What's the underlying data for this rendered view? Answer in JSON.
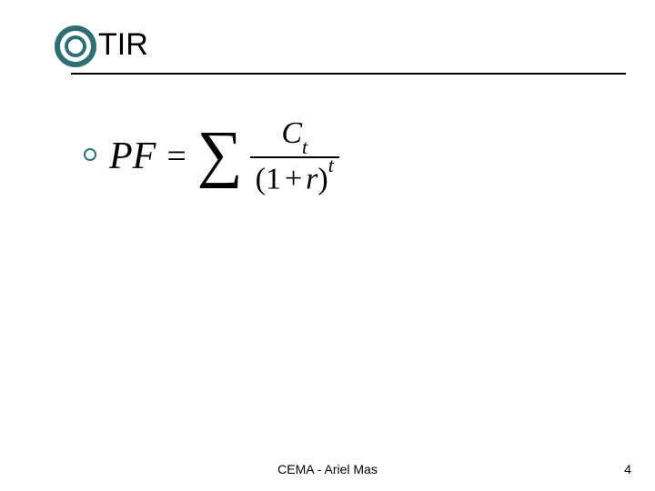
{
  "title": "TIR",
  "accent_color": "#2f6f74",
  "underline_color": "#000000",
  "bullet_border_color": "#2f6f74",
  "ring_inner_bg": "#ffffff",
  "formula": {
    "lhs": "PF",
    "eq": "=",
    "sigma": "∑",
    "numerator_var": "C",
    "numerator_sub": "t",
    "den_open": "(",
    "den_one": "1",
    "den_plus": "+",
    "den_var": "r",
    "den_close": ")",
    "den_sup": "t"
  },
  "footer_center": "CEMA  - Ariel Mas",
  "footer_page": "4"
}
